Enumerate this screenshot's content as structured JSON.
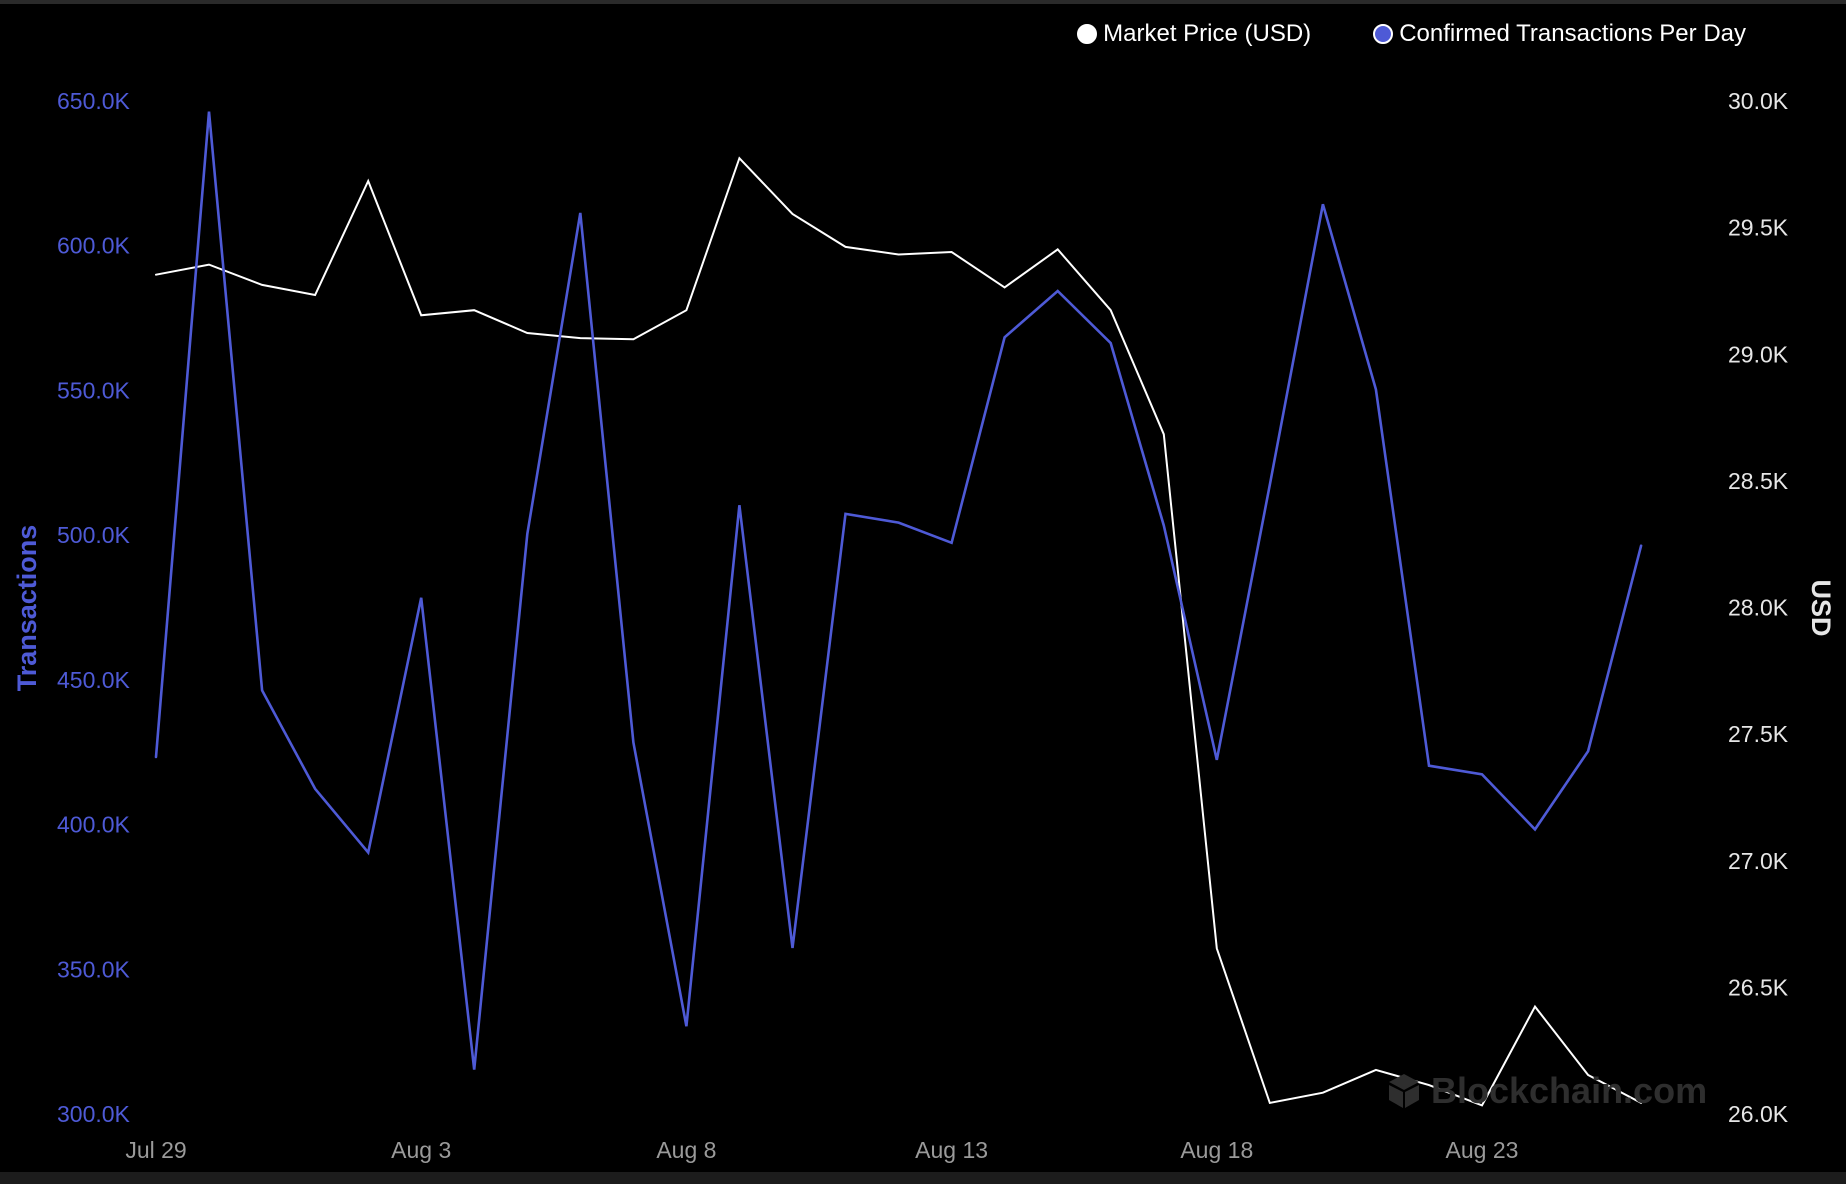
{
  "legend": {
    "price_label": "Market Price (USD)",
    "tx_label": "Confirmed Transactions Per Day"
  },
  "watermark": {
    "text": "Blockchain.com"
  },
  "colors": {
    "background": "#000000",
    "price": "#ffffff",
    "transactions": "#4e5ad6",
    "right_axis_text": "#e6e6e6",
    "x_axis_text": "#9a9a9a"
  },
  "chart_data": {
    "type": "line",
    "x": [
      "Jul 29",
      "Jul 30",
      "Jul 31",
      "Aug 1",
      "Aug 2",
      "Aug 3",
      "Aug 4",
      "Aug 5",
      "Aug 6",
      "Aug 7",
      "Aug 8",
      "Aug 9",
      "Aug 10",
      "Aug 11",
      "Aug 12",
      "Aug 13",
      "Aug 14",
      "Aug 15",
      "Aug 16",
      "Aug 17",
      "Aug 18",
      "Aug 19",
      "Aug 20",
      "Aug 21",
      "Aug 22",
      "Aug 23",
      "Aug 24",
      "Aug 25",
      "Aug 26"
    ],
    "x_ticks": [
      "Jul 29",
      "Aug 3",
      "Aug 8",
      "Aug 13",
      "Aug 18",
      "Aug 23"
    ],
    "series": [
      {
        "name": "Market Price (USD)",
        "axis": "right",
        "color": "#ffffff",
        "values": [
          29310,
          29350,
          29270,
          29230,
          29680,
          29150,
          29170,
          29080,
          29060,
          29055,
          29170,
          29770,
          29550,
          29420,
          29390,
          29400,
          29260,
          29410,
          29170,
          28680,
          26650,
          26040,
          26080,
          26170,
          26110,
          26030,
          26420,
          26150,
          26040
        ]
      },
      {
        "name": "Confirmed Transactions Per Day",
        "axis": "left",
        "color": "#4e5ad6",
        "values": [
          423000,
          646000,
          446000,
          412000,
          390000,
          478000,
          315000,
          500000,
          611000,
          428000,
          330000,
          510000,
          357000,
          507000,
          504000,
          497000,
          568000,
          584000,
          566000,
          503000,
          422000,
          517000,
          614000,
          550000,
          420000,
          417000,
          398000,
          425000,
          496000
        ]
      }
    ],
    "y_left": {
      "label": "Transactions",
      "range": [
        300000,
        650000
      ],
      "ticks": [
        "300.0K",
        "350.0K",
        "400.0K",
        "450.0K",
        "500.0K",
        "550.0K",
        "600.0K",
        "650.0K"
      ]
    },
    "y_right": {
      "label": "USD",
      "range": [
        26000,
        30000
      ],
      "ticks": [
        "26.0K",
        "26.5K",
        "27.0K",
        "27.5K",
        "28.0K",
        "28.5K",
        "29.0K",
        "29.5K",
        "30.0K"
      ]
    },
    "grid": false,
    "legend_position": "top-right"
  }
}
